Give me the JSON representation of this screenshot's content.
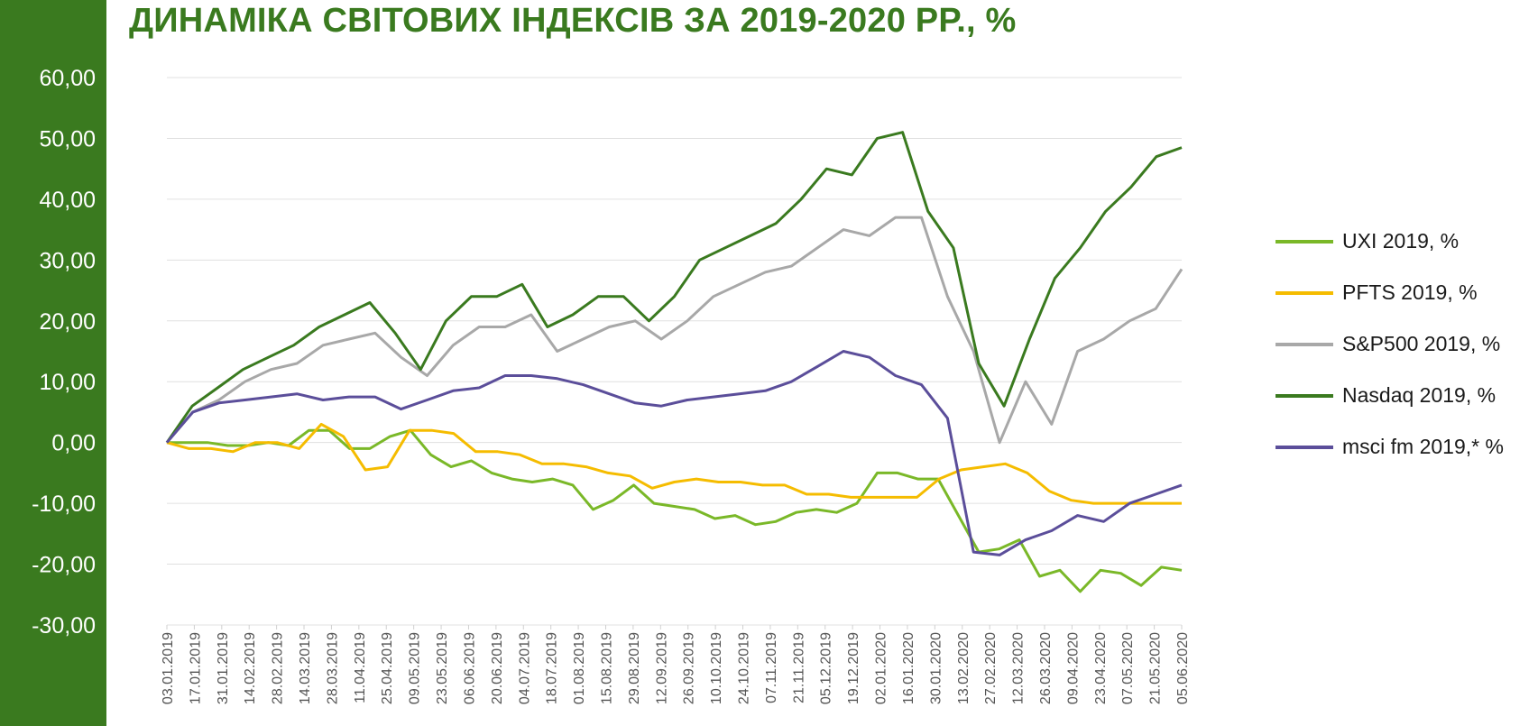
{
  "title": "ДИНАМІКА СВІТОВИХ ІНДЕКСІВ ЗА 2019-2020 РР., %",
  "colors": {
    "band": "#3a7a1f",
    "title": "#3a7a1f",
    "grid": "#e0e0e0"
  },
  "chart_data": {
    "type": "line",
    "title": "ДИНАМІКА СВІТОВИХ ІНДЕКСІВ ЗА 2019-2020 РР., %",
    "xlabel": "",
    "ylabel": "",
    "ylim": [
      -30,
      60
    ],
    "y_ticks": [
      "60,00",
      "50,00",
      "40,00",
      "30,00",
      "20,00",
      "10,00",
      "0,00",
      "-10,00",
      "-20,00",
      "-30,00"
    ],
    "x_ticks": [
      "03.01.2019",
      "17.01.2019",
      "31.01.2019",
      "14.02.2019",
      "28.02.2019",
      "14.03.2019",
      "28.03.2019",
      "11.04.2019",
      "25.04.2019",
      "09.05.2019",
      "23.05.2019",
      "06.06.2019",
      "20.06.2019",
      "04.07.2019",
      "18.07.2019",
      "01.08.2019",
      "15.08.2019",
      "29.08.2019",
      "12.09.2019",
      "26.09.2019",
      "10.10.2019",
      "24.10.2019",
      "07.11.2019",
      "21.11.2019",
      "05.12.2019",
      "19.12.2019",
      "02.01.2020",
      "16.01.2020",
      "30.01.2020",
      "13.02.2020",
      "27.02.2020",
      "12.03.2020",
      "26.03.2020",
      "09.04.2020",
      "23.04.2020",
      "07.05.2020",
      "21.05.2020",
      "05.06.2020"
    ],
    "grid": true,
    "legend_position": "right",
    "series": [
      {
        "name": "UXI 2019, %",
        "color": "#7ab828",
        "values": [
          0.0,
          0.0,
          0.0,
          -0.5,
          -0.5,
          0.0,
          -0.5,
          2.0,
          2.0,
          -1.0,
          -1.0,
          1.0,
          2.0,
          -2.0,
          -4.0,
          -3.0,
          -5.0,
          -6.0,
          -6.5,
          -6.0,
          -7.0,
          -11.0,
          -9.5,
          -7.0,
          -10.0,
          -10.5,
          -11.0,
          -12.5,
          -12.0,
          -13.5,
          -13.0,
          -11.5,
          -11.0,
          -11.5,
          -10.0,
          -5.0,
          -5.0,
          -6.0,
          -6.0,
          -12.0,
          -18.0,
          -17.5,
          -16.0,
          -22.0,
          -21.0,
          -24.5,
          -21.0,
          -21.5,
          -23.5,
          -20.5,
          -21.0
        ]
      },
      {
        "name": "PFTS 2019, %",
        "color": "#f5bc00",
        "values": [
          0.0,
          -1.0,
          -1.0,
          -1.5,
          0.0,
          0.0,
          -1.0,
          3.0,
          1.0,
          -4.5,
          -4.0,
          2.0,
          2.0,
          1.5,
          -1.5,
          -1.5,
          -2.0,
          -3.5,
          -3.5,
          -4.0,
          -5.0,
          -5.5,
          -7.5,
          -6.5,
          -6.0,
          -6.5,
          -6.5,
          -7.0,
          -7.0,
          -8.5,
          -8.5,
          -9.0,
          -9.0,
          -9.0,
          -9.0,
          -6.0,
          -4.5,
          -4.0,
          -3.5,
          -5.0,
          -8.0,
          -9.5,
          -10.0,
          -10.0,
          -10.0,
          -10.0,
          -10.0
        ]
      },
      {
        "name": "S&P500 2019, %",
        "color": "#a8a8a8",
        "values": [
          0.0,
          5.0,
          7.0,
          10.0,
          12.0,
          13.0,
          16.0,
          17.0,
          18.0,
          14.0,
          11.0,
          16.0,
          19.0,
          19.0,
          21.0,
          15.0,
          17.0,
          19.0,
          20.0,
          17.0,
          20.0,
          24.0,
          26.0,
          28.0,
          29.0,
          32.0,
          35.0,
          34.0,
          37.0,
          37.0,
          24.0,
          15.0,
          0.0,
          10.0,
          3.0,
          15.0,
          17.0,
          20.0,
          22.0,
          28.5
        ]
      },
      {
        "name": "Nasdaq 2019, %",
        "color": "#3a7a1f",
        "values": [
          0.0,
          6.0,
          9.0,
          12.0,
          14.0,
          16.0,
          19.0,
          21.0,
          23.0,
          18.0,
          12.0,
          20.0,
          24.0,
          24.0,
          26.0,
          19.0,
          21.0,
          24.0,
          24.0,
          20.0,
          24.0,
          30.0,
          32.0,
          34.0,
          36.0,
          40.0,
          45.0,
          44.0,
          50.0,
          51.0,
          38.0,
          32.0,
          13.0,
          6.0,
          17.0,
          27.0,
          32.0,
          38.0,
          42.0,
          47.0,
          48.5
        ]
      },
      {
        "name": "msci fm 2019,* %",
        "color": "#5b4e9a",
        "values": [
          0.0,
          5.0,
          6.5,
          7.0,
          7.5,
          8.0,
          7.0,
          7.5,
          7.5,
          5.5,
          7.0,
          8.5,
          9.0,
          11.0,
          11.0,
          10.5,
          9.5,
          8.0,
          6.5,
          6.0,
          7.0,
          7.5,
          8.0,
          8.5,
          10.0,
          12.5,
          15.0,
          14.0,
          11.0,
          9.5,
          4.0,
          -18.0,
          -18.5,
          -16.0,
          -14.5,
          -12.0,
          -13.0,
          -10.0,
          -8.5,
          -7.0
        ]
      }
    ]
  }
}
